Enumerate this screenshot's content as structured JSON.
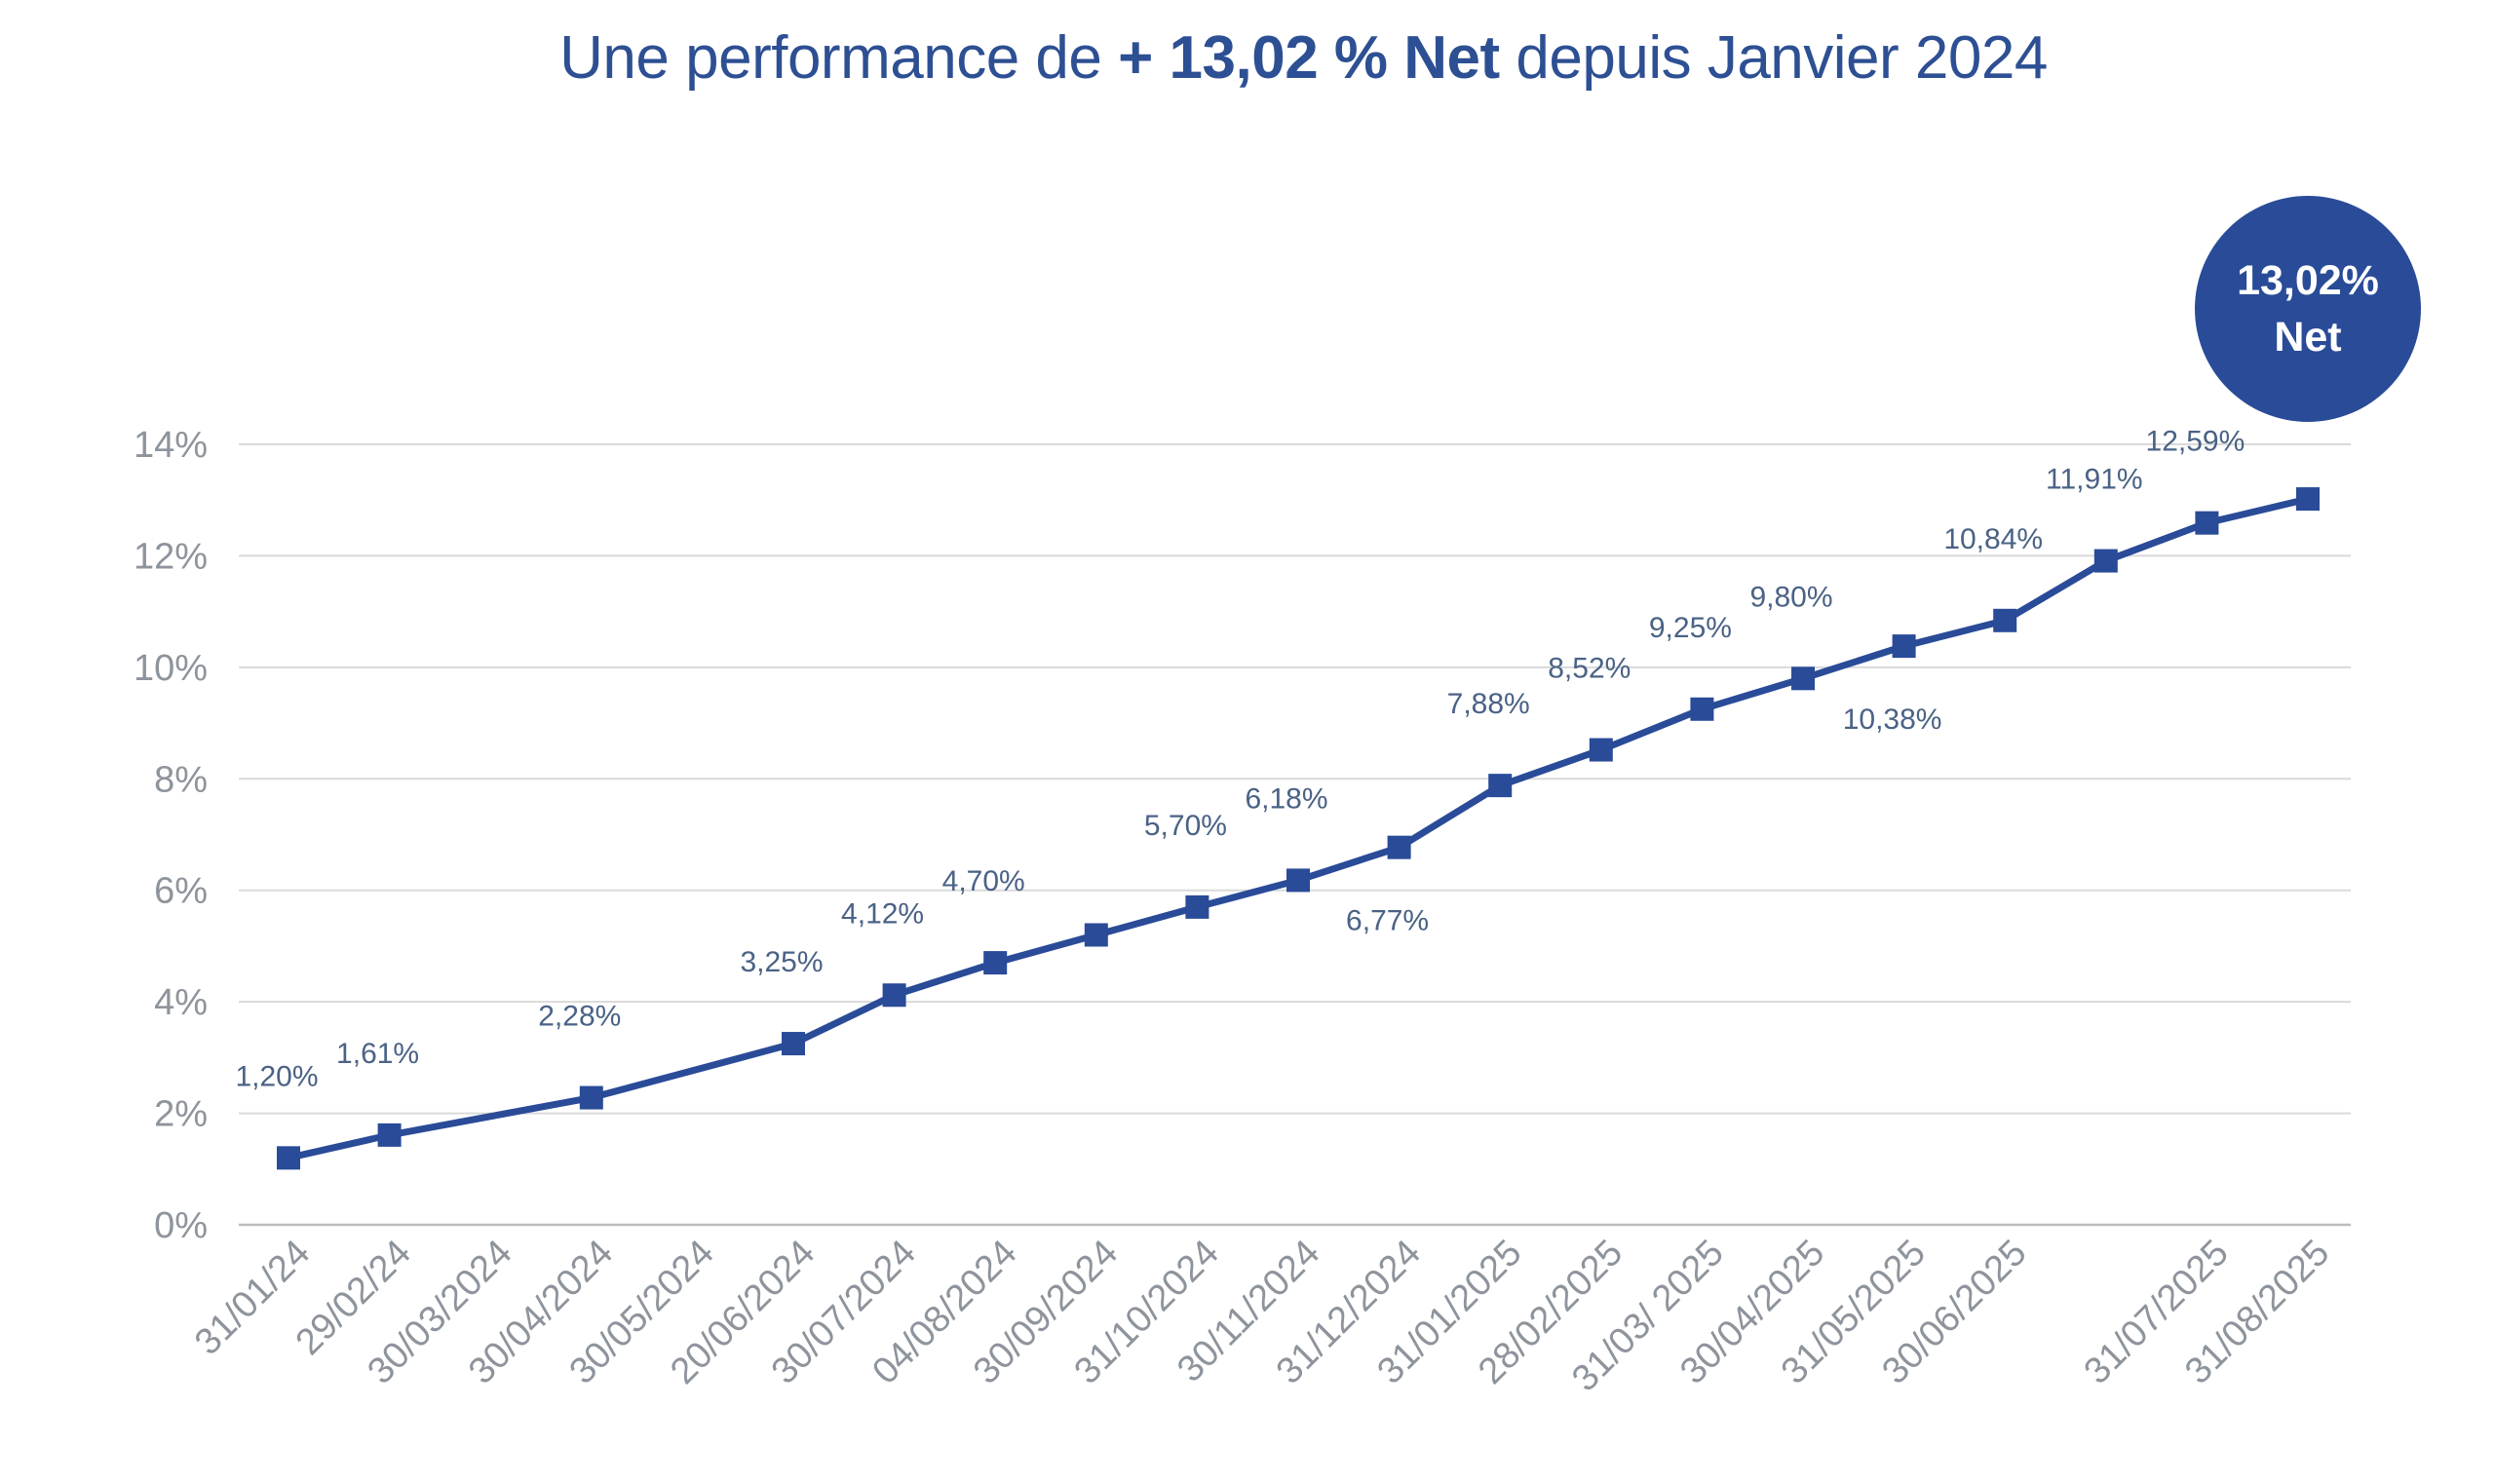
{
  "title": {
    "prefix": "Une performance de ",
    "highlight": "+ 13,02 % Net",
    "suffix": " depuis Janvier 2024"
  },
  "badge": {
    "line1": "13,02%",
    "line2": "Net"
  },
  "colors": {
    "primary": "#294b98",
    "grid": "#dadada",
    "axis": "#bdbdbd",
    "tick_text": "#8e949c",
    "label_text": "#4a6285"
  },
  "chart_data": {
    "type": "line",
    "title": "Une performance de + 13,02 % Net depuis Janvier 2024",
    "xlabel": "",
    "ylabel": "",
    "ylim": [
      0,
      14
    ],
    "yticks": [
      "0%",
      "2%",
      "4%",
      "6%",
      "8%",
      "10%",
      "12%",
      "14%"
    ],
    "grid": true,
    "legend": "none",
    "categories": [
      "31/01/24",
      "29/02/24",
      "30/03/2024",
      "30/04/2024",
      "30/05/2024",
      "20/06/2024",
      "30/07/2024",
      "04/08/2024",
      "30/09/2024",
      "31/10/2024",
      "30/11/2024",
      "31/12/2024",
      "31/01/2025",
      "28/02/2025",
      "31/03/ 2025",
      "30/04/2025",
      "31/05/2025",
      "30/06/2025",
      "",
      "31/07/2025",
      "31/08/2025"
    ],
    "series": [
      {
        "values": [
          1.2,
          1.61,
          null,
          2.28,
          null,
          3.25,
          4.12,
          4.7,
          5.2,
          5.7,
          6.18,
          6.77,
          7.88,
          8.52,
          9.25,
          9.8,
          10.38,
          10.84,
          11.91,
          12.59,
          13.02
        ],
        "labels": [
          "1,20%",
          "1,61%",
          "",
          "2,28%",
          "",
          "3,25%",
          "4,12%",
          "4,70%",
          "",
          "5,70%",
          "6,18%",
          "6,77%",
          "7,88%",
          "8,52%",
          "9,25%",
          "9,80%",
          "10,38%",
          "10,84%",
          "11,91%",
          "12,59%",
          ""
        ]
      }
    ]
  }
}
